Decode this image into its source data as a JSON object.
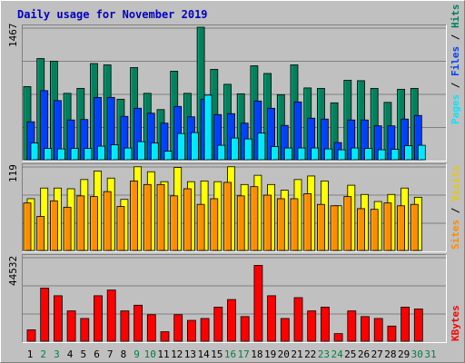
{
  "chart_data": [
    {
      "type": "bar",
      "title": "Daily usage for November 2019",
      "categories": [
        "1",
        "2",
        "3",
        "4",
        "5",
        "6",
        "7",
        "8",
        "9",
        "10",
        "11",
        "12",
        "13",
        "14",
        "15",
        "16",
        "17",
        "18",
        "19",
        "20",
        "21",
        "22",
        "23",
        "24",
        "25",
        "26",
        "27",
        "28",
        "29",
        "30",
        "31"
      ],
      "weekend_days": [
        "2",
        "3",
        "9",
        "10",
        "16",
        "17",
        "23",
        "24",
        "30",
        "31"
      ],
      "ylabel_max": "1467",
      "ylim": [
        0,
        1467
      ],
      "series": [
        {
          "name": "Hits",
          "color": "#00805c",
          "values": [
            810,
            1120,
            1090,
            735,
            790,
            1065,
            1050,
            670,
            1020,
            735,
            555,
            980,
            735,
            1467,
            1000,
            835,
            730,
            1040,
            955,
            720,
            1050,
            795,
            790,
            630,
            880,
            875,
            790,
            635,
            780,
            790,
            0
          ]
        },
        {
          "name": "Files",
          "color": "#0040ff",
          "values": [
            420,
            765,
            655,
            440,
            445,
            690,
            690,
            480,
            570,
            515,
            405,
            590,
            475,
            670,
            500,
            510,
            405,
            650,
            570,
            380,
            640,
            460,
            450,
            190,
            440,
            440,
            375,
            375,
            450,
            490,
            0
          ]
        },
        {
          "name": "Pages",
          "color": "#00e8ff",
          "values": [
            185,
            125,
            120,
            125,
            125,
            150,
            165,
            130,
            200,
            185,
            95,
            290,
            300,
            715,
            160,
            240,
            230,
            295,
            145,
            130,
            130,
            130,
            120,
            110,
            130,
            125,
            110,
            115,
            155,
            160,
            0
          ]
        }
      ],
      "legend": [
        "Pages",
        "Files",
        "Hits"
      ],
      "legend_placement": "right"
    },
    {
      "type": "bar",
      "ylabel_max": "119",
      "ylim": [
        0,
        119
      ],
      "series": [
        {
          "name": "Visits",
          "color": "#ffff00",
          "values": [
            73,
            88,
            88,
            87,
            100,
            112,
            102,
            72,
            118,
            111,
            97,
            117,
            97,
            98,
            97,
            118,
            93,
            106,
            93,
            85,
            100,
            105,
            98,
            63,
            92,
            79,
            69,
            79,
            88,
            75,
            0
          ]
        },
        {
          "name": "Sites",
          "color": "#ff8c00",
          "values": [
            67,
            48,
            70,
            61,
            77,
            76,
            83,
            62,
            98,
            93,
            93,
            77,
            87,
            65,
            73,
            96,
            77,
            90,
            78,
            73,
            73,
            80,
            65,
            63,
            76,
            59,
            58,
            67,
            63,
            65,
            0
          ]
        }
      ],
      "legend": [
        "Sites",
        "Visits"
      ],
      "legend_placement": "right"
    },
    {
      "type": "bar",
      "ylabel_max": "44532",
      "ylim": [
        0,
        44532
      ],
      "series": [
        {
          "name": "KBytes",
          "color": "#ff0000",
          "values": [
            6000,
            28000,
            24000,
            16000,
            12000,
            24000,
            27000,
            16000,
            19000,
            14000,
            5000,
            14000,
            11000,
            12000,
            18000,
            22000,
            13000,
            40000,
            24000,
            12000,
            23000,
            16000,
            18000,
            4000,
            16000,
            13000,
            12000,
            8000,
            18000,
            17000,
            0
          ]
        }
      ],
      "legend": [
        "KBytes"
      ],
      "legend_placement": "right"
    }
  ]
}
